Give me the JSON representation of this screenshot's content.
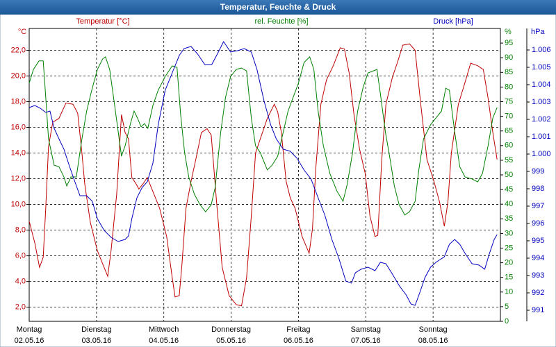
{
  "chart_data": {
    "type": "line",
    "title": "Temperatur, Feuchte & Druck",
    "y_unit": "°C",
    "y2_unit": "%",
    "y3_unit": "hPa",
    "xlim": [
      0,
      168
    ],
    "xticks": [
      0,
      24,
      48,
      72,
      96,
      120,
      144
    ],
    "xtick_days": [
      "Montag",
      "Dienstag",
      "Mittwoch",
      "Donnerstag",
      "Freitag",
      "Samstag",
      "Sonntag"
    ],
    "xtick_dates": [
      "02.05.16",
      "03.05.16",
      "04.05.16",
      "05.05.16",
      "06.05.16",
      "07.05.16",
      "08.05.16"
    ],
    "ylim": [
      0.9,
      23.7
    ],
    "yticks": [
      {
        "value": 2,
        "label": "2,0"
      },
      {
        "value": 4,
        "label": "4,0"
      },
      {
        "value": 6,
        "label": "6,0"
      },
      {
        "value": 8,
        "label": "8,0"
      },
      {
        "value": 10,
        "label": "10,0"
      },
      {
        "value": 12,
        "label": "12,0"
      },
      {
        "value": 14,
        "label": "14,0"
      },
      {
        "value": 16,
        "label": "16,0"
      },
      {
        "value": 18,
        "label": "18,0"
      },
      {
        "value": 20,
        "label": "20,0"
      },
      {
        "value": 22,
        "label": "22,0"
      }
    ],
    "y2lim": [
      0,
      100
    ],
    "y2ticks": [
      0,
      5,
      10,
      15,
      20,
      25,
      30,
      35,
      40,
      45,
      50,
      55,
      60,
      65,
      70,
      75,
      80,
      85,
      90,
      95
    ],
    "y3lim": [
      990.36,
      1007.24
    ],
    "y3ticks": [
      991,
      992,
      993,
      994,
      995,
      996,
      997,
      998,
      999,
      {
        "value": 1000,
        "label": "1.000"
      },
      {
        "value": 1001,
        "label": "1.001"
      },
      {
        "value": 1002,
        "label": "1.002"
      },
      {
        "value": 1003,
        "label": "1.003"
      },
      {
        "value": 1004,
        "label": "1.004"
      },
      {
        "value": 1005,
        "label": "1.005"
      },
      {
        "value": 1006,
        "label": "1.006"
      }
    ],
    "grid": true,
    "series": [
      {
        "name": "Temperatur [°C]",
        "color": "#c00000",
        "axis": "y",
        "x": [
          0,
          2,
          3.7,
          5,
          5.9,
          6.9,
          8.4,
          10.6,
          13.1,
          15.6,
          17.3,
          18.8,
          19.8,
          21.8,
          24.3,
          26.7,
          28,
          29.2,
          31.2,
          32.9,
          34.2,
          35.4,
          36.6,
          38.1,
          39.1,
          40.6,
          42.1,
          44.1,
          46.5,
          49,
          51,
          52,
          53.5,
          54.5,
          55.9,
          57.7,
          59.4,
          61.4,
          63.4,
          64.9,
          66.8,
          68.8,
          71.3,
          73.8,
          75.7,
          77.5,
          79.2,
          80.7,
          82.4,
          84.9,
          87.4,
          88.6,
          89.9,
          91.6,
          93.1,
          94.8,
          97.3,
          99.8,
          101,
          102.2,
          104,
          106,
          108.4,
          110.9,
          112.4,
          114.1,
          115.8,
          117.8,
          119.8,
          121.5,
          123.3,
          124.3,
          125.7,
          127.2,
          129.5,
          131.2,
          133.2,
          135.6,
          137.6,
          139.6,
          141.8,
          144.3,
          146.3,
          148,
          149.3,
          150.5,
          153,
          155.4,
          157.4,
          159.9,
          161.9,
          163.6,
          165.3,
          166.8
        ],
        "values": [
          8.7,
          7.0,
          5.1,
          5.9,
          9.7,
          14.5,
          16.4,
          16.7,
          17.9,
          17.8,
          17.1,
          14.0,
          11.6,
          8.6,
          6.4,
          5.1,
          4.4,
          6.4,
          10.8,
          17.0,
          15.6,
          15.1,
          12.1,
          11.6,
          11.2,
          11.6,
          12.1,
          11.0,
          9.7,
          7.5,
          4.3,
          2.8,
          2.9,
          5.4,
          9.7,
          11.8,
          13.5,
          15.6,
          15.9,
          15.4,
          10.2,
          5.1,
          2.9,
          2.2,
          2.1,
          4.3,
          9.1,
          14.0,
          15.1,
          16.7,
          17.8,
          17.2,
          15.6,
          11.8,
          10.5,
          9.7,
          7.5,
          6.2,
          8.1,
          12.9,
          17.8,
          19.7,
          20.8,
          22.2,
          22.1,
          20.2,
          17.0,
          14.3,
          12.4,
          9.1,
          7.5,
          7.6,
          13.5,
          17.8,
          19.9,
          21.0,
          22.4,
          22.5,
          22.0,
          17.8,
          13.5,
          11.8,
          10.2,
          8.3,
          10.2,
          14.0,
          17.8,
          19.5,
          21.0,
          20.8,
          20.5,
          18.3,
          15.6,
          13.5
        ]
      },
      {
        "name": "rel. Feuchte [%]",
        "color": "#008000",
        "axis": "y2",
        "x": [
          0,
          1.5,
          3.5,
          5,
          5.9,
          6.9,
          8.9,
          10.6,
          12.4,
          13.4,
          14.9,
          16.8,
          18.8,
          20.5,
          22.3,
          24.3,
          26.2,
          27.2,
          28.7,
          30.4,
          32.9,
          34.2,
          36.1,
          37.4,
          38.6,
          39.9,
          41.1,
          42.3,
          44.1,
          46,
          48.5,
          51,
          52.7,
          54,
          55.4,
          56.9,
          58.9,
          60.9,
          62.9,
          64.9,
          66.3,
          68.3,
          70,
          71.8,
          73.8,
          75.7,
          77.5,
          79.2,
          80.7,
          82.4,
          84.9,
          86.6,
          88.6,
          90.6,
          92.3,
          94.1,
          96,
          98,
          100,
          101.5,
          103,
          104.9,
          107.2,
          109.7,
          111.9,
          113.4,
          115.3,
          117.1,
          119.1,
          120.8,
          124,
          125.2,
          127,
          128.7,
          130.2,
          131.9,
          133.9,
          135.6,
          137.6,
          138.9,
          140.6,
          143.1,
          145,
          147,
          148.5,
          149.8,
          151.7,
          153.5,
          155.4,
          157.9,
          159.9,
          161.6,
          163.6,
          165.3,
          166.8
        ],
        "values": [
          81.3,
          86,
          88.9,
          88.9,
          76.5,
          62.3,
          53.3,
          52.8,
          49.3,
          46.2,
          49.3,
          49.3,
          62.3,
          71.8,
          78.9,
          86,
          89.6,
          90.3,
          86,
          74.2,
          56.4,
          59.9,
          67.5,
          71.8,
          69.4,
          66.4,
          67.5,
          65.9,
          73.7,
          78.9,
          83.6,
          87.2,
          86.7,
          70.6,
          57.6,
          49.3,
          43.4,
          39.8,
          37.4,
          39.8,
          45.7,
          64.7,
          76.5,
          83.6,
          86,
          86.5,
          85.5,
          69.4,
          59.9,
          57.6,
          51.7,
          53.3,
          56.4,
          64.7,
          71.8,
          76.5,
          81.3,
          88.4,
          90.3,
          86,
          71.8,
          59.9,
          50.5,
          44.5,
          41,
          46.9,
          57.6,
          71.8,
          80.1,
          84.8,
          86,
          77.7,
          64.7,
          55.2,
          46.2,
          39.8,
          36.3,
          37.4,
          41,
          51.7,
          62.3,
          67.1,
          69.4,
          71.8,
          79.6,
          78.9,
          64.7,
          52.8,
          49.3,
          48.6,
          47.6,
          50.5,
          59.9,
          69.4,
          73
        ]
      },
      {
        "name": "Druck [hPa]",
        "color": "#0000c0",
        "axis": "y3",
        "x": [
          0,
          2,
          4,
          5.9,
          7.4,
          8.9,
          10.6,
          12.4,
          14.4,
          16.3,
          18.1,
          20.5,
          22.5,
          24.3,
          26.7,
          29.2,
          31.7,
          34.2,
          35.4,
          36.6,
          38.4,
          40.3,
          42.1,
          44.1,
          46,
          48.5,
          51.5,
          53.5,
          55.2,
          57.7,
          60.1,
          62.6,
          65.1,
          66.8,
          69.3,
          71.8,
          74.3,
          76.7,
          79.2,
          81.2,
          83.7,
          86.1,
          88.1,
          90.6,
          93.1,
          95.5,
          98,
          100.5,
          103,
          105.4,
          107.9,
          110.4,
          112.9,
          114.9,
          116.3,
          118.3,
          120.8,
          123.3,
          125.2,
          127.2,
          129.5,
          132,
          134.4,
          136.1,
          137.6,
          139.4,
          141.1,
          143.1,
          145,
          148,
          149.8,
          151.7,
          153.5,
          155.4,
          157.9,
          160.4,
          162.4,
          164.1,
          165.8,
          166.8
        ],
        "values": [
          1002.68,
          1002.8,
          1002.64,
          1002.4,
          1002.48,
          1001.48,
          1000.88,
          1000.28,
          999.28,
          998.4,
          997.6,
          997.6,
          997.28,
          996.28,
          995.6,
          995.2,
          994.96,
          995.08,
          995.28,
          996.28,
          997.48,
          998.08,
          998.4,
          999.48,
          1001.68,
          1003.68,
          1004.88,
          1005.68,
          1006.08,
          1006.2,
          1005.76,
          1005.16,
          1005.16,
          1005.68,
          1006.48,
          1005.88,
          1005.96,
          1006.08,
          1005.88,
          1004.88,
          1003.08,
          1001.68,
          1000.88,
          1000.28,
          1000.16,
          999.76,
          999.08,
          998.56,
          997.48,
          996.48,
          995.08,
          994,
          992.68,
          992.56,
          993.16,
          993.36,
          993.48,
          993.28,
          993.76,
          993.68,
          993.08,
          992.4,
          991.88,
          991.36,
          991.28,
          992.08,
          992.88,
          993.48,
          993.76,
          994.08,
          994.8,
          995.08,
          994.8,
          994.28,
          993.68,
          993.6,
          993.36,
          994.28,
          995.08,
          995.36
        ]
      }
    ]
  }
}
